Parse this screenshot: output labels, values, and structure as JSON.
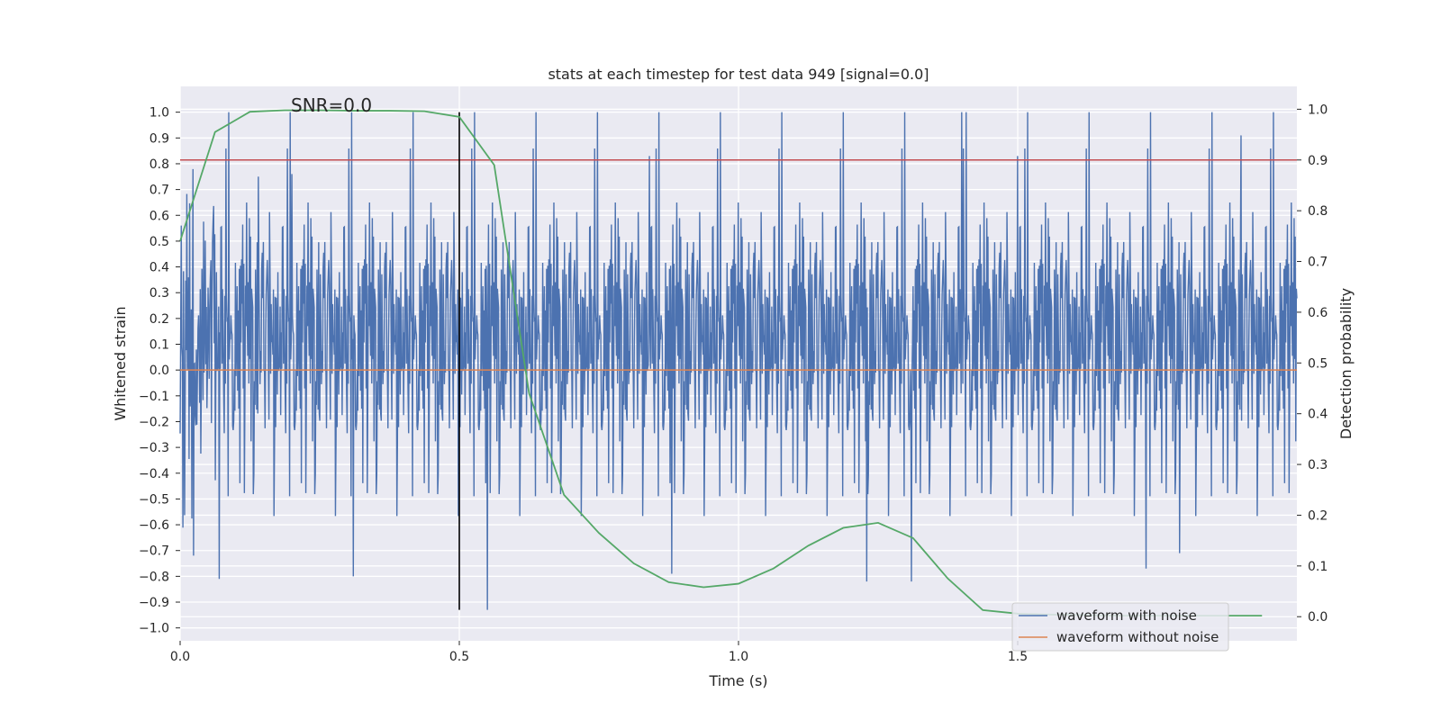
{
  "chart_data": {
    "type": "line",
    "title": "stats at each timestep for test data 949 [signal=0.0]",
    "xlabel": "Time (s)",
    "ylabel": "Whitened strain",
    "y2label": "Detection probability",
    "annotation": "SNR=0.0",
    "xlim": [
      0.0,
      2.0
    ],
    "ylim": [
      -1.05,
      1.1
    ],
    "y2lim": [
      -0.0475,
      1.045
    ],
    "xticks": [
      0.0,
      0.5,
      1.0,
      1.5
    ],
    "xtick_labels": [
      "0.0",
      "0.5",
      "1.0",
      "1.5"
    ],
    "yticks": [
      1.0,
      0.9,
      0.8,
      0.7,
      0.6,
      0.5,
      0.4,
      0.3,
      0.2,
      0.1,
      0.0,
      -0.1,
      -0.2,
      -0.3,
      -0.4,
      -0.5,
      -0.6,
      -0.7,
      -0.8,
      -0.9,
      -1.0
    ],
    "ytick_labels": [
      "1.0",
      "0.9",
      "0.8",
      "0.7",
      "0.6",
      "0.5",
      "0.4",
      "0.3",
      "0.2",
      "0.1",
      "0.0",
      "−0.1",
      "−0.2",
      "−0.3",
      "−0.4",
      "−0.5",
      "−0.6",
      "−0.7",
      "−0.8",
      "−0.9",
      "−1.0"
    ],
    "y2ticks": [
      1.0,
      0.9,
      0.8,
      0.7,
      0.6,
      0.5,
      0.4,
      0.3,
      0.2,
      0.1,
      0.0
    ],
    "y2tick_labels": [
      "1.0",
      "0.9",
      "0.8",
      "0.7",
      "0.6",
      "0.5",
      "0.4",
      "0.3",
      "0.2",
      "0.1",
      "0.0"
    ],
    "threshold_y2": 0.9,
    "vertical_marker": {
      "x": 0.5,
      "y_from": -0.93,
      "y_to": 1.0
    },
    "series": [
      {
        "name": "waveform with noise",
        "axis": "left",
        "color": "#4c72b0",
        "noise": {
          "points": 2000,
          "spread": 0.32,
          "min": -0.93,
          "max": 1.0
        },
        "spikes": [
          {
            "x": 0.07,
            "y": -0.81
          },
          {
            "x": 0.14,
            "y": 0.75
          },
          {
            "x": 0.2,
            "y": 0.76
          },
          {
            "x": 0.31,
            "y": 0.75
          },
          {
            "x": 0.31,
            "y": -0.8
          },
          {
            "x": 0.55,
            "y": -0.93
          },
          {
            "x": 0.84,
            "y": 0.83
          },
          {
            "x": 0.88,
            "y": -0.79
          },
          {
            "x": 1.23,
            "y": -0.82
          },
          {
            "x": 1.31,
            "y": -0.82
          },
          {
            "x": 1.4,
            "y": 1.0
          },
          {
            "x": 1.5,
            "y": 0.83
          },
          {
            "x": 1.73,
            "y": -0.77
          },
          {
            "x": 1.79,
            "y": -0.71
          },
          {
            "x": 1.9,
            "y": 0.91
          }
        ]
      },
      {
        "name": "waveform without noise",
        "axis": "left",
        "color": "#dd8452",
        "x": [
          0.0,
          2.0
        ],
        "y": [
          0.0,
          0.0
        ]
      },
      {
        "name": "detection probability",
        "axis": "right",
        "color": "#55a868",
        "x": [
          0.0,
          0.0625,
          0.125,
          0.1875,
          0.25,
          0.3125,
          0.375,
          0.4375,
          0.5,
          0.5625,
          0.625,
          0.6875,
          0.75,
          0.8125,
          0.875,
          0.9375,
          1.0,
          1.0625,
          1.125,
          1.1875,
          1.25,
          1.3125,
          1.375,
          1.4375,
          1.5,
          1.5625,
          1.625,
          1.6875,
          1.75,
          1.8125,
          1.875,
          1.9375
        ],
        "y": [
          0.74,
          0.955,
          0.995,
          0.998,
          0.998,
          0.997,
          0.997,
          0.996,
          0.985,
          0.89,
          0.44,
          0.24,
          0.165,
          0.105,
          0.068,
          0.058,
          0.065,
          0.095,
          0.14,
          0.175,
          0.185,
          0.155,
          0.075,
          0.013,
          0.006,
          0.004,
          0.003,
          0.002,
          0.002,
          0.002,
          0.002,
          0.002
        ]
      },
      {
        "name": "detection threshold",
        "axis": "right",
        "color": "#c44e52",
        "x": [
          0.0,
          2.0
        ],
        "y": [
          0.9,
          0.9
        ]
      }
    ],
    "legend": {
      "location": "lower right",
      "entries": [
        {
          "label": "waveform with noise",
          "color": "#4c72b0"
        },
        {
          "label": "waveform without noise",
          "color": "#dd8452"
        }
      ]
    },
    "grid": true,
    "colors": {
      "background": "#eaeaf2",
      "grid": "#ffffff",
      "text": "#262626",
      "marker": "#000000"
    }
  }
}
